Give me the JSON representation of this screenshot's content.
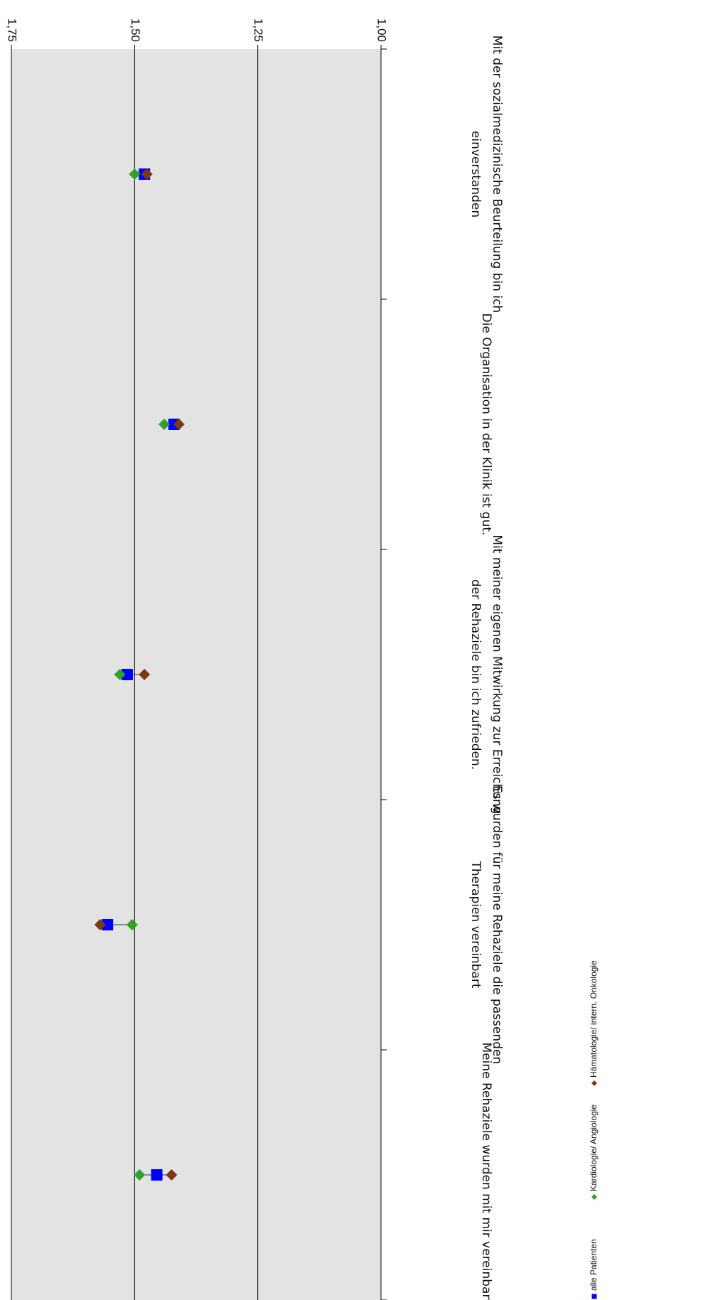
{
  "chart_data": {
    "type": "scatter",
    "orientation": "rotated-180",
    "categories": [
      "Meine Rehaziele wurden mit mir vereinbart.",
      "Es wurden für meine Rehaziele die passenden Therapien vereinbart",
      "Mit meiner eigenen Mitwirkung zur Erreichung der Rehaziele bin ich zufrieden.",
      "Die Organisation in der Klinik ist gut.",
      "Mit der sozialmedizinische Beurteilung bin ich einverstanden"
    ],
    "category_lines": [
      [
        "Meine Rehaziele wurden mit mir vereinbart."
      ],
      [
        "Es wurden für meine Rehaziele die passenden",
        "Therapien vereinbart"
      ],
      [
        "Mit meiner eigenen Mitwirkung zur Erreichung",
        "der Rehaziele bin ich zufrieden."
      ],
      [
        "Die Organisation in der Klinik ist gut."
      ],
      [
        "Mit der sozialmedizinische Beurteilung bin ich",
        "einverstanden"
      ]
    ],
    "series": [
      {
        "name": "alle Patienten",
        "values": [
          1.455,
          1.555,
          1.515,
          1.42,
          1.48
        ],
        "color": "#0000ff",
        "marker": "square"
      },
      {
        "name": "Kardiologie/ Angiologie",
        "values": [
          1.49,
          1.505,
          1.53,
          1.44,
          1.5
        ],
        "color": "#33a02c",
        "marker": "diamond"
      },
      {
        "name": "Hämatologie/ intern. Onkologie",
        "values": [
          1.425,
          1.57,
          1.48,
          1.41,
          1.475
        ],
        "color": "#7b3a10",
        "marker": "diamond"
      }
    ],
    "ylim": [
      1.0,
      1.75
    ],
    "yticks": [
      "1,00",
      "1,25",
      "1,50",
      "1,75"
    ],
    "ytick_values": [
      1.0,
      1.25,
      1.5,
      1.75
    ],
    "grid": true,
    "plot_background": "#e3e3e3",
    "legend_position": "bottom-right"
  }
}
